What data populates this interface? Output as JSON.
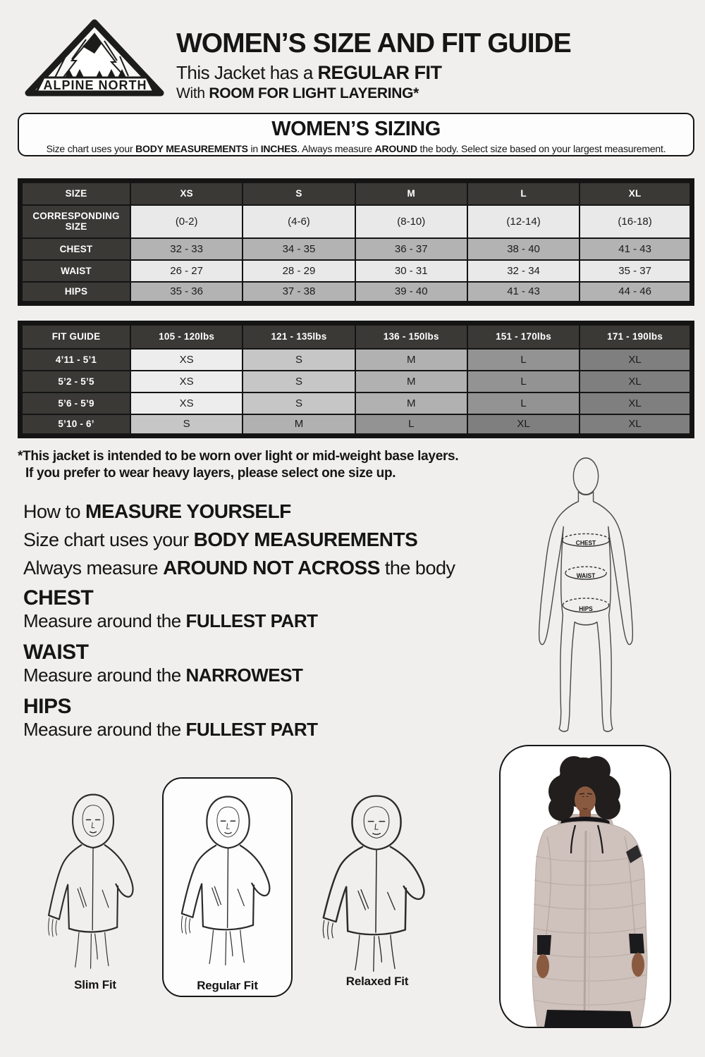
{
  "header": {
    "logo_text": "ALPINE NORTH",
    "title": "WOMEN’S SIZE AND FIT GUIDE",
    "fit_prefix": "This Jacket has a ",
    "fit_bold": "REGULAR FIT",
    "layer_prefix": "With ",
    "layer_bold": "ROOM FOR LIGHT LAYERING*"
  },
  "sizing_box": {
    "title": "WOMEN’S SIZING",
    "subtitle": [
      {
        "t": "Size chart uses your "
      },
      {
        "t": "BODY MEASUREMENTS",
        "b": true
      },
      {
        "t": " in "
      },
      {
        "t": "INCHES",
        "b": true
      },
      {
        "t": ". Always measure "
      },
      {
        "t": "AROUND",
        "b": true
      },
      {
        "t": " the body. Select size based on your largest measurement."
      }
    ]
  },
  "size_table": {
    "columns": [
      "SIZE",
      "XS",
      "S",
      "M",
      "L",
      "XL"
    ],
    "rows": [
      {
        "label": "CORRESPONDING SIZE",
        "values": [
          "(0-2)",
          "(4-6)",
          "(8-10)",
          "(12-14)",
          "(16-18)"
        ]
      },
      {
        "label": "CHEST",
        "values": [
          "32 - 33",
          "34 - 35",
          "36 - 37",
          "38 - 40",
          "41 - 43"
        ]
      },
      {
        "label": "WAIST",
        "values": [
          "26 - 27",
          "28 - 29",
          "30 - 31",
          "32 - 34",
          "35 - 37"
        ]
      },
      {
        "label": "HIPS",
        "values": [
          "35 - 36",
          "37 - 38",
          "39 - 40",
          "41 - 43",
          "44 - 46"
        ]
      }
    ],
    "row_shades": [
      "#e9e9e9",
      "#b3b3b3",
      "#e9e9e9",
      "#b3b3b3"
    ]
  },
  "fit_table": {
    "columns": [
      "FIT GUIDE",
      "105 - 120lbs",
      "121 - 135lbs",
      "136 - 150lbs",
      "151 - 170lbs",
      "171 - 190lbs"
    ],
    "rows": [
      {
        "label": "4’11 - 5’1",
        "values": [
          "XS",
          "S",
          "M",
          "L",
          "XL"
        ]
      },
      {
        "label": "5’2 - 5’5",
        "values": [
          "XS",
          "S",
          "M",
          "L",
          "XL"
        ]
      },
      {
        "label": "5’6 - 5’9",
        "values": [
          "XS",
          "S",
          "M",
          "L",
          "XL"
        ]
      },
      {
        "label": "5’10 - 6’",
        "values": [
          "S",
          "M",
          "L",
          "XL",
          "XL"
        ]
      }
    ],
    "size_shades": {
      "XS": "#ededed",
      "S": "#c6c6c6",
      "M": "#b1b1b1",
      "L": "#939393",
      "XL": "#7f7f7f"
    }
  },
  "note": {
    "line1": "*This jacket is intended to be worn over light or mid-weight base layers.",
    "line2": "If you prefer to wear heavy layers, please select one size up."
  },
  "measure": {
    "line1": [
      {
        "t": "How to "
      },
      {
        "t": "MEASURE YOURSELF",
        "b": true
      }
    ],
    "line2": [
      {
        "t": "Size chart uses your "
      },
      {
        "t": "BODY MEASUREMENTS",
        "b": true
      }
    ],
    "line3": [
      {
        "t": "Always measure "
      },
      {
        "t": "AROUND NOT ACROSS",
        "b": true
      },
      {
        "t": " the body"
      }
    ],
    "chest": {
      "heading": "CHEST",
      "prefix": "Measure around the ",
      "bold": "FULLEST PART"
    },
    "waist": {
      "heading": "WAIST",
      "prefix": "Measure around the ",
      "bold": "NARROWEST"
    },
    "hips": {
      "heading": "HIPS",
      "prefix": "Measure around the ",
      "bold": "FULLEST PART"
    }
  },
  "diagram": {
    "chest_label": "CHEST",
    "waist_label": "WAIST",
    "hips_label": "HIPS"
  },
  "fits": {
    "items": [
      {
        "label": "Slim Fit",
        "highlighted": false
      },
      {
        "label": "Regular Fit",
        "highlighted": true
      },
      {
        "label": "Relaxed Fit",
        "highlighted": false
      }
    ]
  },
  "colors": {
    "page_bg": "#f0efee",
    "table_header_bg": "#3a3936",
    "table_border": "#141414",
    "coat": "#cfc1bb",
    "skin": "#8a5a40",
    "hair": "#221e1d"
  }
}
